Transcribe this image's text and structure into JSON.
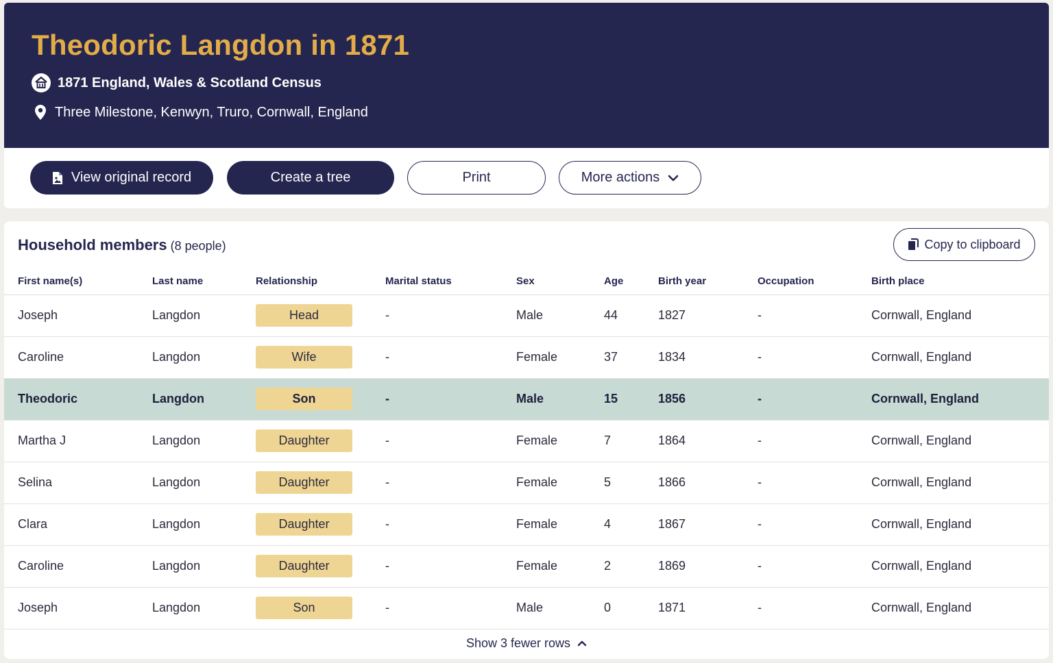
{
  "header": {
    "title": "Theodoric Langdon in 1871",
    "collection": "1871 England, Wales & Scotland Census",
    "location": "Three Milestone, Kenwyn, Truro, Cornwall, England"
  },
  "actions": {
    "view_original": "View original record",
    "create_tree": "Create a tree",
    "print": "Print",
    "more_actions": "More actions"
  },
  "household": {
    "title": "Household members",
    "count": "(8 people)",
    "copy_label": "Copy to clipboard",
    "columns": [
      "First name(s)",
      "Last name",
      "Relationship",
      "Marital status",
      "Sex",
      "Age",
      "Birth year",
      "Occupation",
      "Birth place"
    ],
    "rows": [
      [
        "Joseph",
        "Langdon",
        "Head",
        "-",
        "Male",
        "44",
        "1827",
        "-",
        "Cornwall, England"
      ],
      [
        "Caroline",
        "Langdon",
        "Wife",
        "-",
        "Female",
        "37",
        "1834",
        "-",
        "Cornwall, England"
      ],
      [
        "Theodoric",
        "Langdon",
        "Son",
        "-",
        "Male",
        "15",
        "1856",
        "-",
        "Cornwall, England"
      ],
      [
        "Martha J",
        "Langdon",
        "Daughter",
        "-",
        "Female",
        "7",
        "1864",
        "-",
        "Cornwall, England"
      ],
      [
        "Selina",
        "Langdon",
        "Daughter",
        "-",
        "Female",
        "5",
        "1866",
        "-",
        "Cornwall, England"
      ],
      [
        "Clara",
        "Langdon",
        "Daughter",
        "-",
        "Female",
        "4",
        "1867",
        "-",
        "Cornwall, England"
      ],
      [
        "Caroline",
        "Langdon",
        "Daughter",
        "-",
        "Female",
        "2",
        "1869",
        "-",
        "Cornwall, England"
      ],
      [
        "Joseph",
        "Langdon",
        "Son",
        "-",
        "Male",
        "0",
        "1871",
        "-",
        "Cornwall, England"
      ]
    ],
    "toggle_label": "Show 3 fewer rows"
  },
  "colors": {
    "navy": "#25264f",
    "gold_title": "#e2ad48",
    "badge": "#efd594",
    "highlight_row": "#c7dad4"
  },
  "icons": [
    "census-house-icon",
    "location-pin-icon",
    "document-image-icon",
    "chevron-down-icon",
    "clipboard-icon",
    "chevron-up-icon"
  ]
}
